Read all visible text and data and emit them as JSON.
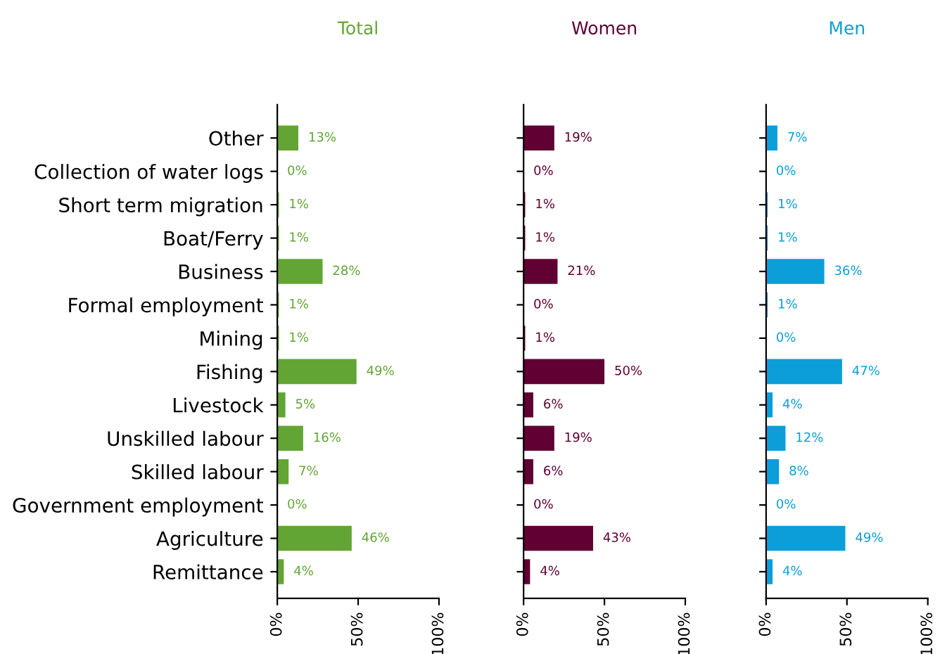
{
  "chart_data": [
    {
      "type": "bar",
      "orientation": "horizontal",
      "title": "Total",
      "categories": [
        "Other",
        "Collection of water logs",
        "Short term migration",
        "Boat/Ferry",
        "Business",
        "Formal employment",
        "Mining",
        "Fishing",
        "Livestock",
        "Unskilled labour",
        "Skilled labour",
        "Government employment",
        "Agriculture",
        "Remittance"
      ],
      "series": [
        {
          "color": "#62a534",
          "values": [
            13,
            0,
            1,
            1,
            28,
            1,
            1,
            49,
            5,
            16,
            7,
            0,
            46,
            4
          ],
          "value_labels": [
            "13%",
            "0%",
            "1%",
            "1%",
            "28%",
            "1%",
            "1%",
            "49%",
            "5%",
            "16%",
            "7%",
            "0%",
            "46%",
            "4%"
          ]
        }
      ],
      "xlim": [
        0,
        100
      ],
      "xticks": [
        {
          "value": 0,
          "label": "0%"
        },
        {
          "value": 50,
          "label": "50%"
        },
        {
          "value": 100,
          "label": "100%"
        }
      ],
      "grid": false
    },
    {
      "type": "bar",
      "orientation": "horizontal",
      "title": "Women",
      "categories": [
        null,
        null,
        null,
        null,
        null,
        null,
        null,
        null,
        null,
        null,
        null,
        null,
        null,
        null
      ],
      "series": [
        {
          "color": "#600033",
          "values": [
            19,
            0,
            1,
            1,
            21,
            0,
            1,
            50,
            6,
            19,
            6,
            0,
            43,
            4
          ],
          "value_labels": [
            "19%",
            "0%",
            "1%",
            "1%",
            "21%",
            "0%",
            "1%",
            "50%",
            "6%",
            "19%",
            "6%",
            "0%",
            "43%",
            "4%"
          ]
        }
      ],
      "xlim": [
        0,
        100
      ],
      "xticks": [
        {
          "value": 0,
          "label": "0%"
        },
        {
          "value": 50,
          "label": "50%"
        },
        {
          "value": 100,
          "label": "100%"
        }
      ],
      "tick_labels": "x",
      "grid": false
    },
    {
      "type": "bar",
      "orientation": "horizontal",
      "title": "Men",
      "categories": [
        null,
        null,
        null,
        null,
        null,
        null,
        null,
        null,
        null,
        null,
        null,
        null,
        null,
        null
      ],
      "series": [
        {
          "color": "#0b9ed9",
          "values": [
            7,
            0,
            1,
            1,
            36,
            1,
            0,
            47,
            4,
            12,
            8,
            0,
            49,
            4
          ],
          "value_labels": [
            "7%",
            "0%",
            "1%",
            "1%",
            "36%",
            "1%",
            "0%",
            "47%",
            "4%",
            "12%",
            "8%",
            "0%",
            "49%",
            "4%"
          ]
        }
      ],
      "xlim": [
        0,
        100
      ],
      "xticks": [
        {
          "value": 0,
          "label": "0%"
        },
        {
          "value": 50,
          "label": "50%"
        },
        {
          "value": 100,
          "label": "100%"
        }
      ],
      "tick_labels": "x",
      "grid": false
    }
  ]
}
